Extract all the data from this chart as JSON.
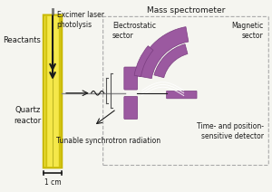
{
  "bg_color": "#f5f5f0",
  "purple": "#9b59a0",
  "purple_dark": "#7a3d80",
  "yellow_light": "#f5e84a",
  "yellow_dark": "#c8b800",
  "black": "#1a1a1a",
  "gray": "#888888",
  "text_color": "#1a1a1a",
  "title": "Mass spectrometer",
  "label_electrostatic": "Electrostatic\nsector",
  "label_magnetic": "Magnetic\nsector",
  "label_reactants": "Reactants",
  "label_quartz": "Quartz\nreactor",
  "label_laser": "Excimer laser\nphotolysis",
  "label_tunable": "Tunable synchrotron radiation",
  "label_detector": "Time- and position-\nsensitive detector",
  "label_1cm": "1 cm"
}
